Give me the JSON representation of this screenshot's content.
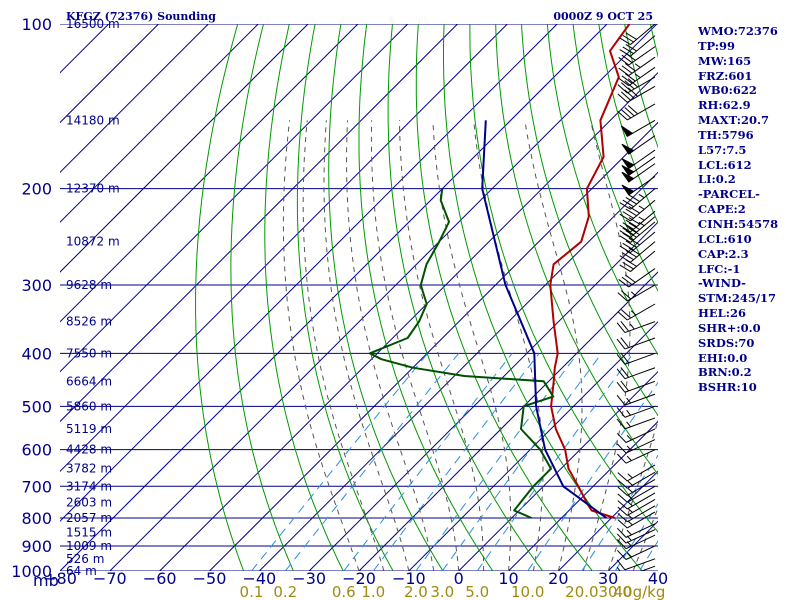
{
  "header": {
    "title": "KFGZ (72376) Sounding",
    "datetime": "0000Z  9 OCT 25"
  },
  "params": [
    "WMO:72376",
    "TP:99",
    "MW:165",
    "FRZ:601",
    "WB0:622",
    "RH:62.9",
    "MAXT:20.7",
    "TH:5796",
    "L57:7.5",
    "LCL:612",
    "LI:0.2",
    "-PARCEL-",
    "CAPE:2",
    "CINH:54578",
    "LCL:610",
    "CAP:2.3",
    "LFC:-1",
    "-WIND-",
    "STM:245/17",
    "HEL:26",
    "SHR+:0.0",
    "SRDS:70",
    "EHI:0.0",
    "BRN:0.2",
    "BSHR:10"
  ],
  "colors": {
    "frame": "#00008b",
    "temperature": "#b00000",
    "dewpoint": "#005000",
    "parcel": "#00008b",
    "dry_adiabat": "#009900",
    "moist_adiabat": "#555555",
    "mixing_ratio": "#2a8fe0",
    "wind_barb": "#000000"
  },
  "chart_data": {
    "type": "line",
    "title": "KFGZ (72376) Sounding",
    "xlabel": "",
    "ylabel": "mb",
    "skew_t": true,
    "pressure_axis": {
      "unit": "mb",
      "scale": "log",
      "range": [
        1000,
        100
      ],
      "ticks": [
        100,
        200,
        300,
        400,
        500,
        600,
        700,
        800,
        900,
        1000
      ]
    },
    "temperature_axis": {
      "range": [
        -80,
        40
      ],
      "ticks": [
        -80,
        -70,
        -60,
        -50,
        -40,
        -30,
        -20,
        -10,
        0,
        10,
        20,
        30,
        40
      ]
    },
    "height_labels": [
      "16500 m",
      "14180 m",
      "12370 m",
      "10872 m",
      "9628 m",
      "8526 m",
      "7550 m",
      "6664 m",
      "5860 m",
      "5119 m",
      "4428 m",
      "3782 m",
      "3174 m",
      "2603 m",
      "2057 m",
      "1515 m",
      "1009 m",
      "526 m",
      "64 m"
    ],
    "height_label_pressures": [
      100,
      150,
      200,
      250,
      300,
      350,
      400,
      450,
      500,
      550,
      600,
      650,
      700,
      750,
      800,
      850,
      900,
      950,
      1000
    ],
    "mixing_ratio_labels": [
      "0.1",
      "0.2",
      "0.6",
      "1.0",
      "2.0",
      "3.0",
      "5.0",
      "10.0",
      "20.0",
      "30.0",
      "40g/kg"
    ],
    "mixing_ratio_values": [
      0.1,
      0.2,
      0.6,
      1,
      2,
      3,
      5,
      10,
      20,
      30,
      40
    ],
    "dry_adiabats_K": [
      230,
      240,
      250,
      260,
      270,
      280,
      290,
      300,
      310,
      320,
      330,
      340,
      350,
      360,
      370,
      380,
      390,
      400,
      410,
      420,
      430,
      440,
      450,
      460,
      470,
      480
    ],
    "moist_adiabats_C": [
      -20,
      -15,
      -10,
      -5,
      0,
      5,
      10,
      15,
      20,
      25,
      30,
      35,
      40
    ],
    "series": [
      {
        "role": "temperature",
        "pressure": [
          800,
          775,
          750,
          700,
          650,
          600,
          550,
          500,
          450,
          425,
          400,
          350,
          300,
          275,
          250,
          225,
          200,
          175,
          150,
          125,
          112,
          100
        ],
        "values": [
          20.7,
          14.5,
          12,
          7,
          1.5,
          -3,
          -9,
          -14.5,
          -19,
          -21.5,
          -23.8,
          -31,
          -39,
          -42.5,
          -41.5,
          -45,
          -51,
          -54,
          -62,
          -67,
          -74,
          -75.5
        ]
      },
      {
        "role": "dewpoint",
        "pressure": [
          800,
          775,
          700,
          650,
          600,
          550,
          500,
          480,
          450,
          440,
          425,
          410,
          400,
          375,
          350,
          325,
          300,
          275,
          262,
          250,
          230,
          210,
          200
        ],
        "values": [
          4,
          -1,
          -2,
          -2,
          -8,
          -16,
          -20,
          -16,
          -21,
          -38,
          -50,
          -58,
          -61.5,
          -57,
          -58,
          -60,
          -65,
          -68,
          -69,
          -70,
          -72,
          -78,
          -80
        ]
      },
      {
        "role": "parcel",
        "pressure": [
          800,
          700,
          600,
          500,
          400,
          300,
          200,
          150
        ],
        "values": [
          19,
          4,
          -7,
          -17.5,
          -28.5,
          -48,
          -72,
          -85
        ]
      }
    ],
    "wind_barbs": {
      "pressure": [
        980,
        950,
        900,
        860,
        840,
        820,
        780,
        760,
        740,
        720,
        700,
        680,
        660,
        640,
        600,
        575,
        550,
        525,
        500,
        475,
        450,
        425,
        400,
        375,
        350,
        325,
        300,
        280,
        260,
        250,
        240,
        230,
        225,
        220,
        210,
        200,
        190,
        180,
        175,
        170,
        160,
        150,
        140,
        130,
        125,
        120,
        115,
        110,
        105,
        100
      ],
      "direction_deg": [
        250,
        250,
        245,
        245,
        245,
        245,
        240,
        240,
        240,
        240,
        240,
        240,
        240,
        240,
        245,
        245,
        245,
        250,
        250,
        250,
        250,
        250,
        250,
        250,
        250,
        240,
        240,
        235,
        230,
        230,
        230,
        230,
        230,
        230,
        230,
        230,
        235,
        235,
        235,
        235,
        235,
        240,
        240,
        240,
        240,
        235,
        235,
        235,
        230,
        230
      ],
      "speed_kt": [
        10,
        10,
        15,
        15,
        15,
        15,
        15,
        15,
        15,
        15,
        15,
        15,
        15,
        15,
        15,
        15,
        15,
        15,
        15,
        15,
        20,
        20,
        20,
        20,
        25,
        25,
        25,
        30,
        30,
        40,
        40,
        40,
        45,
        45,
        45,
        45,
        50,
        50,
        50,
        50,
        50,
        50,
        40,
        40,
        40,
        35,
        35,
        30,
        30,
        30
      ]
    }
  }
}
